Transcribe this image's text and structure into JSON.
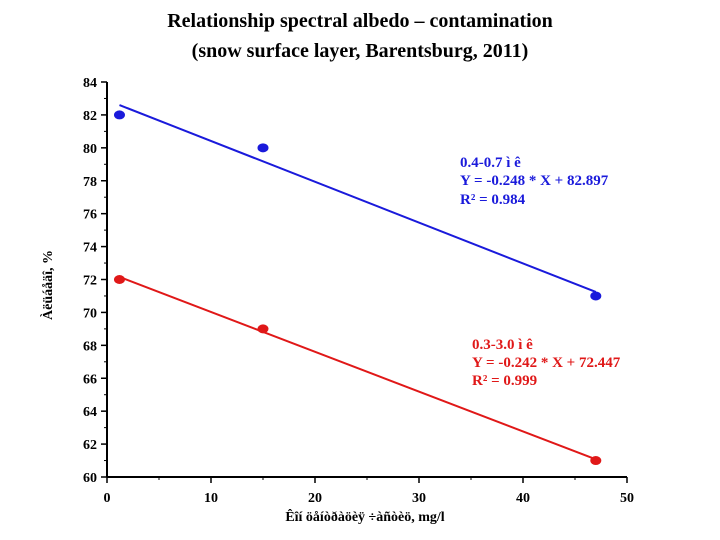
{
  "chart_data": {
    "type": "scatter",
    "title_lines": [
      "Relationship spectral albedo – contamination",
      "(snow  surface  layer, Barentsburg, 2011)"
    ],
    "xlabel": "Êîí öåíòðàöèÿ ÷àñòèö, mg/l",
    "ylabel": "Àëüáåäî, %",
    "xlim": [
      0,
      50
    ],
    "ylim": [
      60,
      84
    ],
    "xticks": [
      0,
      10,
      20,
      30,
      40,
      50
    ],
    "yticks": [
      60,
      62,
      64,
      66,
      68,
      70,
      72,
      74,
      76,
      78,
      80,
      82,
      84
    ],
    "grid": false,
    "series": [
      {
        "color": "#1a1adb",
        "points": [
          [
            1.2,
            82
          ],
          [
            15,
            80
          ],
          [
            47,
            71
          ]
        ],
        "fit": {
          "slope": -0.248,
          "intercept": 82.897,
          "x_range": [
            1.2,
            47
          ]
        },
        "annotation": [
          "0.4-0.7 ì ê",
          "Y = -0.248 * X + 82.897",
          "R² = 0.984"
        ]
      },
      {
        "color": "#e01818",
        "points": [
          [
            1.2,
            72
          ],
          [
            15,
            69
          ],
          [
            47,
            61
          ]
        ],
        "fit": {
          "slope": -0.242,
          "intercept": 72.447,
          "x_range": [
            1.2,
            47
          ]
        },
        "annotation": [
          "0.3-3.0 ì ê",
          "Y = -0.242 * X + 72.447",
          "R² = 0.999"
        ]
      }
    ]
  }
}
